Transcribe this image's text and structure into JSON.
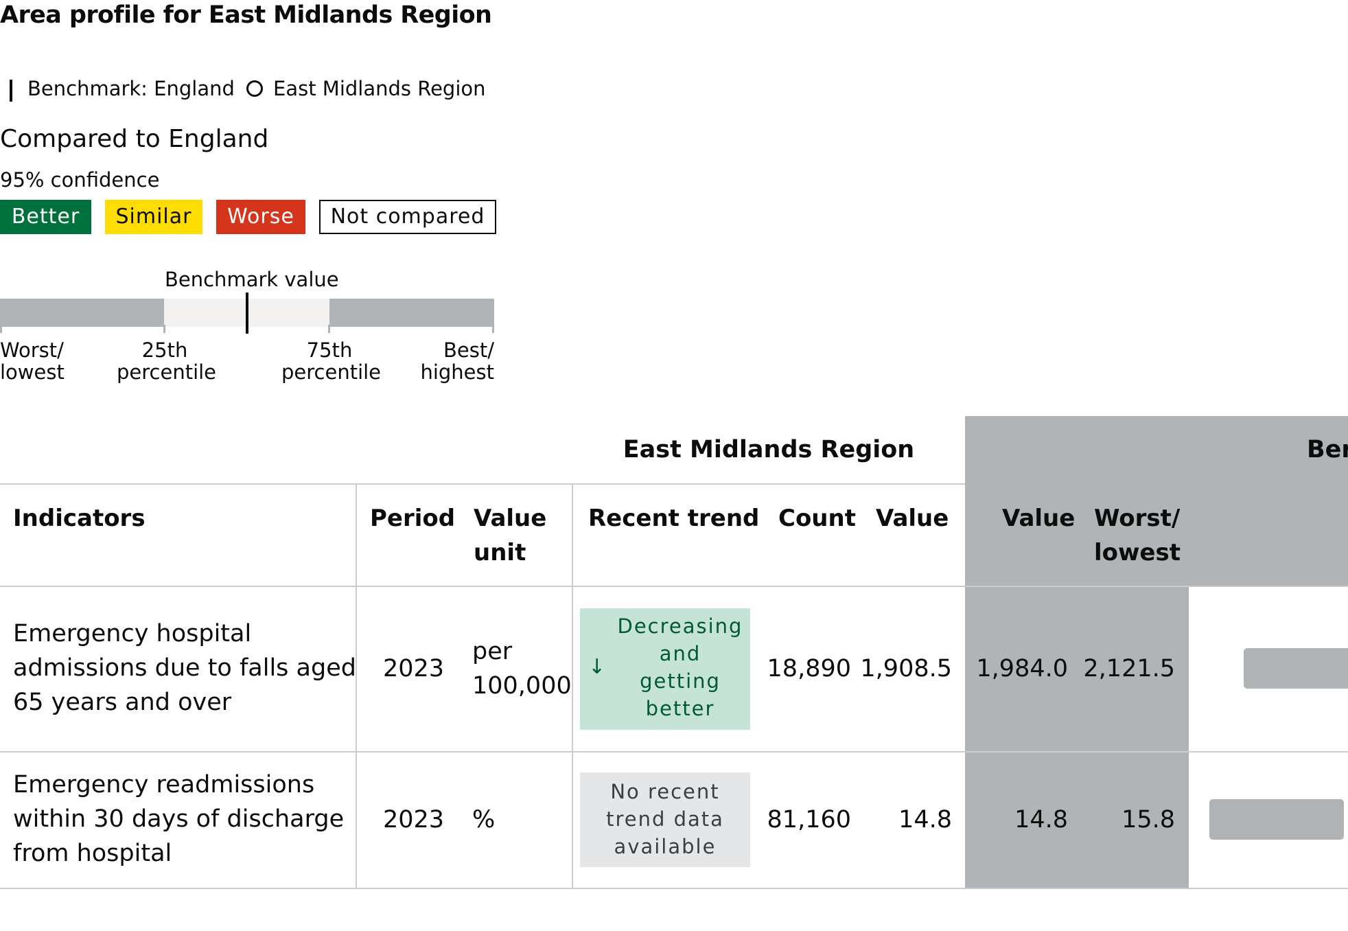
{
  "page": {
    "title": "Area profile for East Midlands Region"
  },
  "legend": {
    "benchmark_label": "Benchmark: England",
    "area_label": "East Midlands Region",
    "compared_heading": "Compared to England",
    "confidence": "95% confidence",
    "badges": {
      "better": "Better",
      "similar": "Similar",
      "worse": "Worse",
      "not_compared": "Not compared"
    },
    "colors": {
      "better": "#00703c",
      "similar": "#ffdd00",
      "worse": "#d4351c",
      "spine_grey": "#b1b4b6",
      "spine_light": "#f3f2f1",
      "trend_improving_bg": "#c6e3d8",
      "trend_improving_text": "#005a30",
      "trend_none_bg": "#e5e6e7"
    },
    "spine": {
      "benchmark_value": "Benchmark value",
      "worst_line1": "Worst/",
      "worst_line2": "lowest",
      "p25_line1": "25th",
      "p25_line2": "percentile",
      "p75_line1": "75th",
      "p75_line2": "percentile",
      "best_line1": "Best/",
      "best_line2": "highest"
    }
  },
  "table": {
    "group_header": "East Midlands Region",
    "benchmark_group_header": "Ber",
    "headers": {
      "indicators": "Indicators",
      "period": "Period",
      "value_unit_line1": "Value",
      "value_unit_line2": "unit",
      "recent_trend": "Recent trend",
      "count": "Count",
      "value": "Value",
      "bm_value": "Value",
      "bm_worst_line1": "Worst/",
      "bm_worst_line2": "lowest"
    },
    "rows": [
      {
        "indicator_lines": [
          "Emergency hospital",
          "admissions due to falls aged",
          "65 years and over"
        ],
        "period": "2023",
        "unit_lines": [
          "per",
          "100,000"
        ],
        "trend_icon": "arrow-down-icon",
        "trend_lines": [
          "Decreasing",
          "and",
          "getting",
          "better"
        ],
        "count": "18,890",
        "value": "1,908.5",
        "bm_value": "1,984.0",
        "bm_worst": "2,121.5"
      },
      {
        "indicator_lines": [
          "Emergency readmissions",
          "within 30 days of discharge",
          "from hospital"
        ],
        "period": "2023",
        "unit_lines": [
          "%"
        ],
        "trend_lines": [
          "No recent",
          "trend data",
          "available"
        ],
        "count": "81,160",
        "value": "14.8",
        "bm_value": "14.8",
        "bm_worst": "15.8"
      }
    ]
  }
}
